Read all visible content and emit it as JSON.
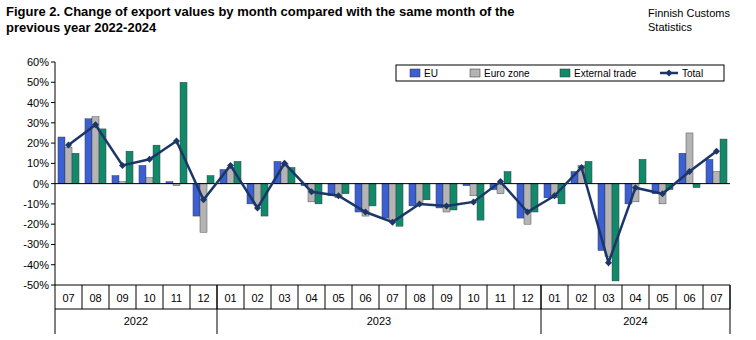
{
  "chart_data": {
    "type": "bar",
    "title": "Figure 2. Change of export values by month compared with the same month of the previous year 2022-2024",
    "source": "Finnish Customs Statistics",
    "categories": [
      "07",
      "08",
      "09",
      "10",
      "11",
      "12",
      "01",
      "02",
      "03",
      "04",
      "05",
      "06",
      "07",
      "08",
      "09",
      "10",
      "11",
      "12",
      "01",
      "02",
      "03",
      "04",
      "05",
      "06",
      "07"
    ],
    "category_groups": [
      {
        "label": "2022",
        "count": 6
      },
      {
        "label": "2023",
        "count": 12
      },
      {
        "label": "2024",
        "count": 7
      }
    ],
    "series": [
      {
        "name": "EU",
        "type": "bar",
        "color": "#3c5fd2",
        "values": [
          23,
          32,
          4,
          9,
          1,
          -16,
          7,
          -10,
          11,
          -1,
          -6,
          -14,
          -17,
          -11,
          -12,
          -1,
          -3,
          -17,
          -7,
          6,
          -33,
          -10,
          -5,
          15,
          12
        ]
      },
      {
        "name": "Euro zone",
        "type": "bar",
        "color": "#b4b4b4",
        "values": [
          18,
          33,
          1,
          3,
          -1,
          -24,
          8,
          -11,
          10,
          -9,
          -7,
          -16,
          -18,
          -10,
          -14,
          -6,
          -5,
          -20,
          -7,
          9,
          -36,
          -9,
          -10,
          25,
          6
        ]
      },
      {
        "name": "External trade",
        "type": "bar",
        "color": "#13896b",
        "values": [
          15,
          27,
          16,
          19,
          50,
          4,
          11,
          -16,
          8,
          -10,
          -5,
          -11,
          -21,
          -8,
          -13,
          -18,
          6,
          -14,
          -10,
          11,
          -48,
          12,
          -3,
          -2,
          22
        ]
      },
      {
        "name": "Total",
        "type": "line",
        "color": "#1c3668",
        "marker": "diamond",
        "values": [
          19,
          29,
          9,
          12,
          21,
          -8,
          9,
          -12,
          10,
          -4,
          -6,
          -14,
          -19,
          -10,
          -11,
          -9,
          1,
          -14,
          -6,
          8,
          -39,
          -2,
          -5,
          6,
          16
        ]
      }
    ],
    "ylim": [
      -50,
      60
    ],
    "yticks": [
      {
        "value": -50,
        "label": "-50%"
      },
      {
        "value": -40,
        "label": "-40%"
      },
      {
        "value": -30,
        "label": "-30%"
      },
      {
        "value": -20,
        "label": "-20%"
      },
      {
        "value": -10,
        "label": "-10%"
      },
      {
        "value": 0,
        "label": "0%"
      },
      {
        "value": 10,
        "label": "10%"
      },
      {
        "value": 20,
        "label": "20%"
      },
      {
        "value": 30,
        "label": "30%"
      },
      {
        "value": 40,
        "label": "40%"
      },
      {
        "value": 50,
        "label": "50%"
      },
      {
        "value": 60,
        "label": "60%"
      }
    ],
    "grid": false,
    "legend": "top-right"
  }
}
